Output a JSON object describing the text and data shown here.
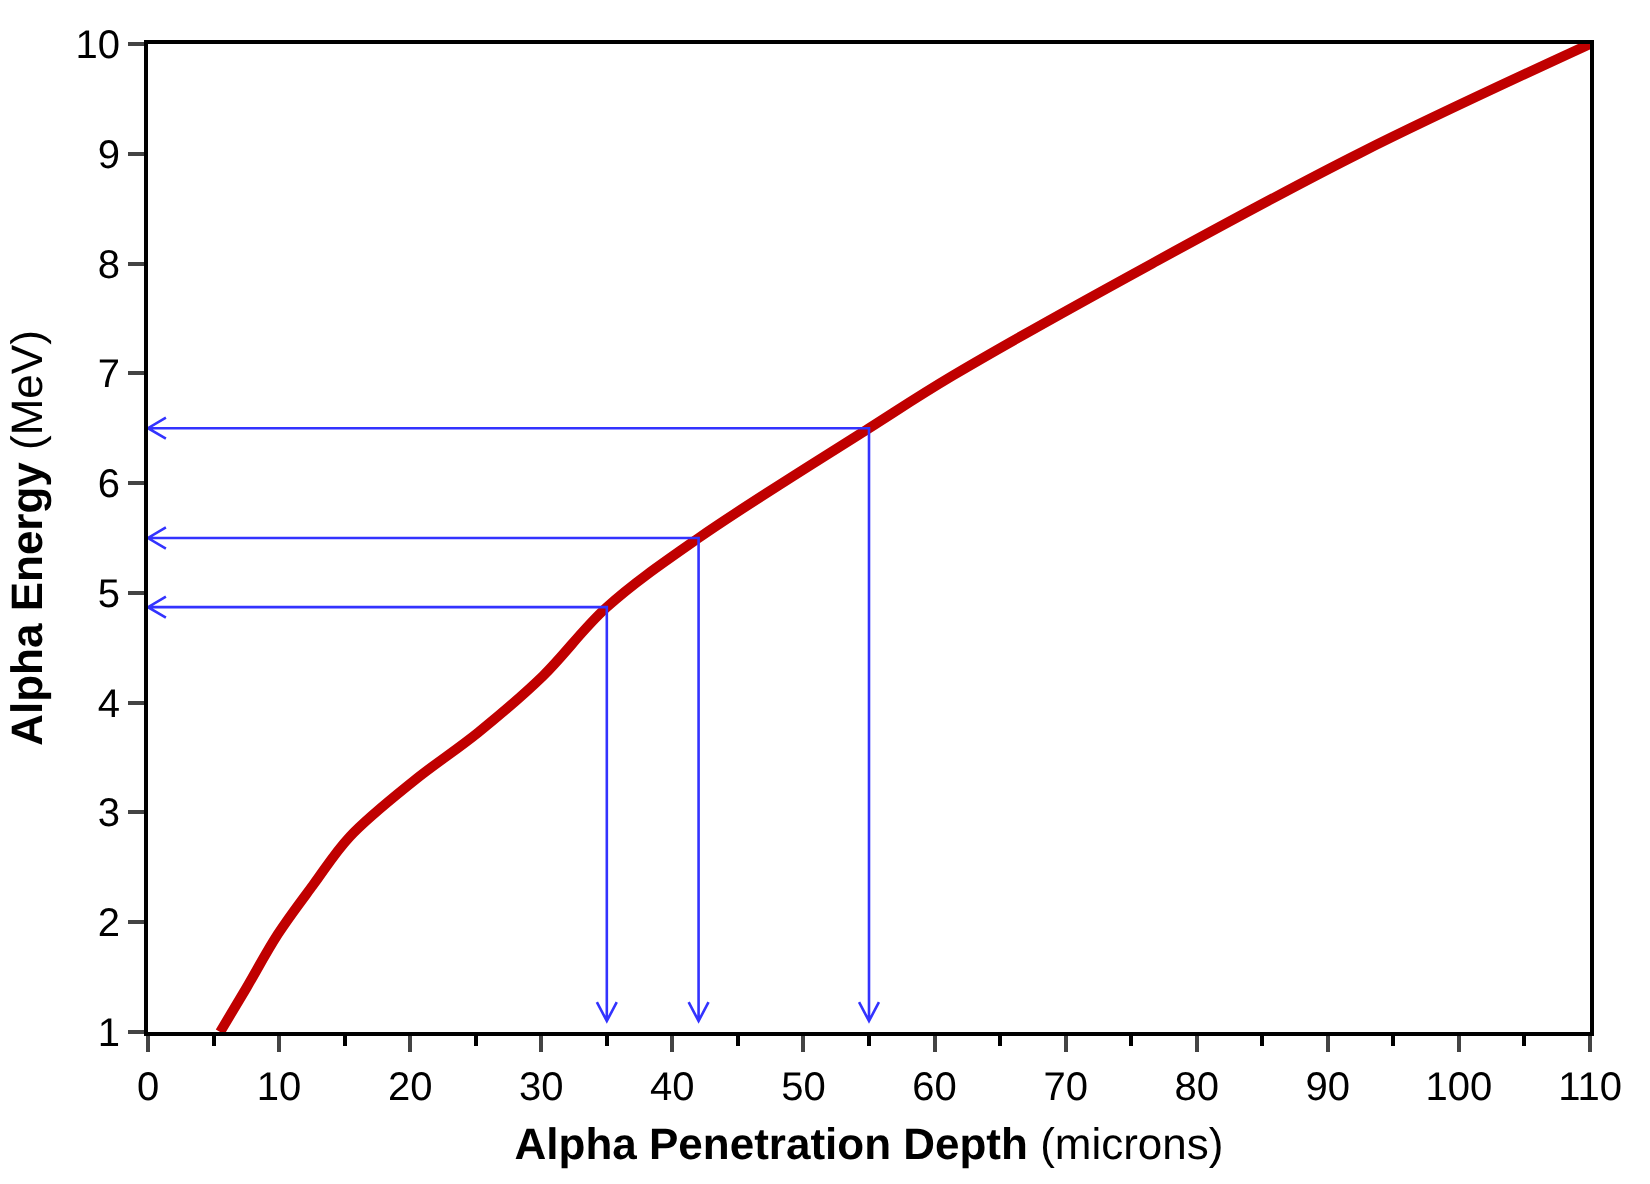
{
  "chart_data": {
    "type": "line",
    "xlabel": "Alpha Penetration Depth (microns)",
    "ylabel": "Alpha Energy (MeV)",
    "xlim": [
      0,
      110
    ],
    "xticks": [
      0,
      10,
      20,
      30,
      40,
      50,
      60,
      70,
      80,
      90,
      100,
      110
    ],
    "ylim": [
      1,
      10
    ],
    "yticks": [
      1,
      2,
      3,
      4,
      5,
      6,
      7,
      8,
      9,
      10
    ],
    "series": [
      {
        "color": "#c00000",
        "x": [
          5.5,
          7.5,
          9.9,
          12.6,
          15.4,
          20.3,
          25.2,
          30.1,
          35,
          42,
          55,
          61.4,
          76.6,
          92.5,
          110
        ],
        "values": [
          1,
          1.4,
          1.89,
          2.34,
          2.78,
          3.29,
          3.73,
          4.24,
          4.87,
          5.5,
          6.5,
          6.98,
          8.0,
          9.01,
          10
        ]
      },
      {
        "color": "#3333ff",
        "x": [
          0,
          35,
          35
        ],
        "values": [
          4.87,
          4.87,
          1.1
        ]
      },
      {
        "color": "#3333ff",
        "x": [
          0,
          42,
          42
        ],
        "values": [
          5.5,
          5.5,
          1.1
        ]
      },
      {
        "color": "#3333ff",
        "x": [
          0,
          55,
          55
        ],
        "values": [
          6.5,
          6.5,
          1.1
        ]
      }
    ]
  }
}
